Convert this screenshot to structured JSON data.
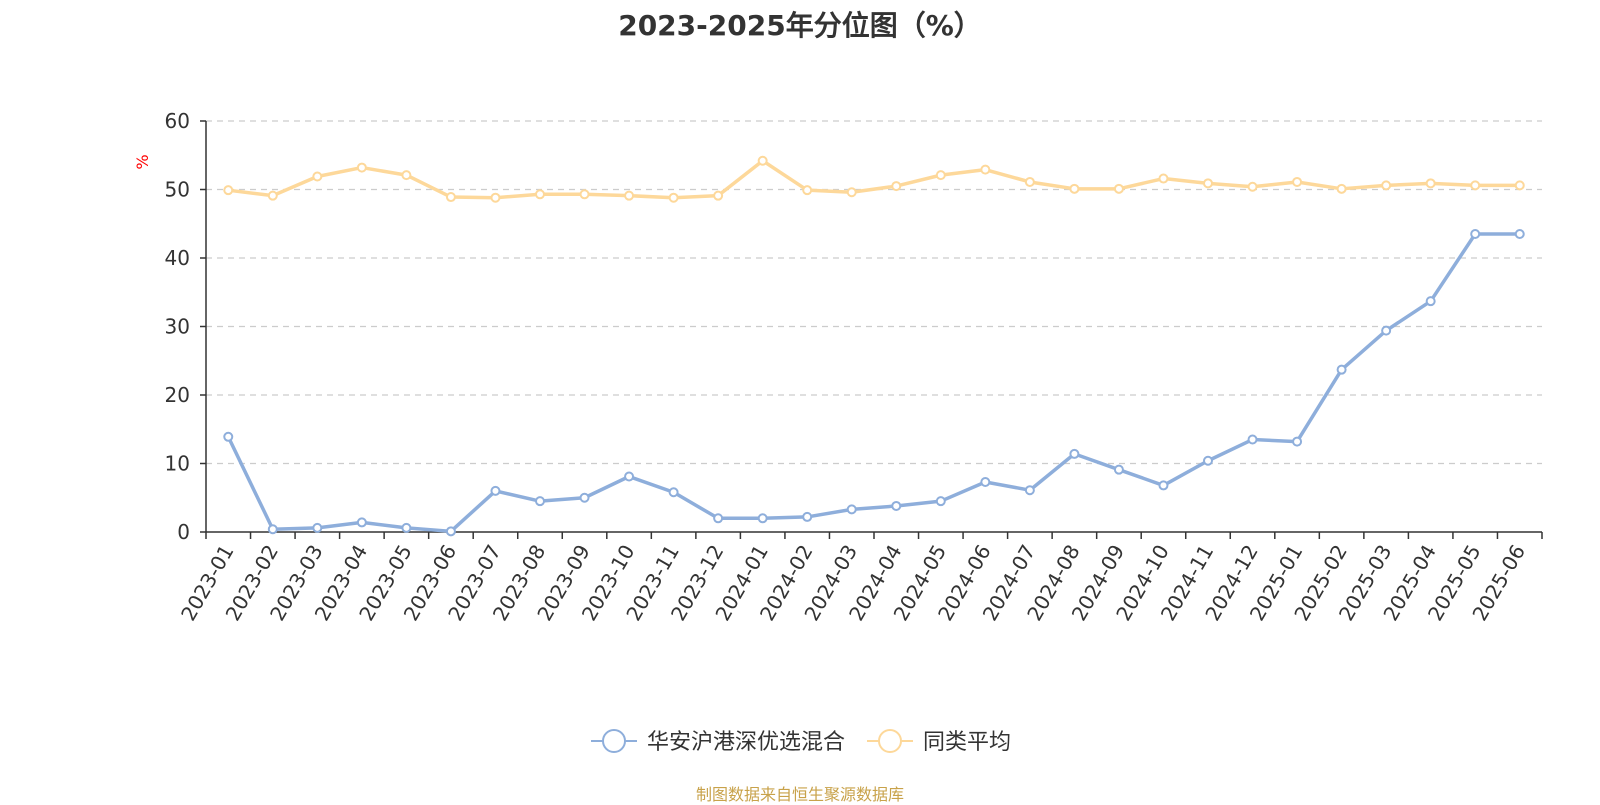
{
  "chart_data": {
    "type": "line",
    "title": "2023-2025年分位图（%）",
    "ylabel": "%",
    "ylim": [
      0,
      60
    ],
    "yticks": [
      0,
      10,
      20,
      30,
      40,
      50,
      60
    ],
    "grid": true,
    "legend_position": "bottom",
    "categories": [
      "2023-01",
      "2023-02",
      "2023-03",
      "2023-04",
      "2023-05",
      "2023-06",
      "2023-07",
      "2023-08",
      "2023-09",
      "2023-10",
      "2023-11",
      "2023-12",
      "2024-01",
      "2024-02",
      "2024-03",
      "2024-04",
      "2024-05",
      "2024-06",
      "2024-07",
      "2024-08",
      "2024-09",
      "2024-10",
      "2024-11",
      "2024-12",
      "2025-01",
      "2025-02",
      "2025-03",
      "2025-04",
      "2025-05",
      "2025-06"
    ],
    "series": [
      {
        "name": "华安沪港深优选混合",
        "color": "#8eaedb",
        "values": [
          13.9,
          0.4,
          0.6,
          1.4,
          0.6,
          0.1,
          6.0,
          4.5,
          5.0,
          8.1,
          5.8,
          2.0,
          2.0,
          2.2,
          3.3,
          3.8,
          4.5,
          7.3,
          6.1,
          11.4,
          9.1,
          6.8,
          10.4,
          13.5,
          13.2,
          23.7,
          29.4,
          33.7,
          43.5,
          43.5
        ]
      },
      {
        "name": "同类平均",
        "color": "#fdd89a",
        "values": [
          49.9,
          49.1,
          51.9,
          53.2,
          52.1,
          48.9,
          48.8,
          49.3,
          49.3,
          49.1,
          48.8,
          49.1,
          54.2,
          49.9,
          49.6,
          50.5,
          52.1,
          52.9,
          51.1,
          50.1,
          50.1,
          51.6,
          50.9,
          50.4,
          51.1,
          50.1,
          50.6,
          50.9,
          50.6,
          50.6
        ]
      }
    ]
  },
  "source_note": "制图数据来自恒生聚源数据库",
  "colors": {
    "axis": "#333333",
    "grid": "#cccccc",
    "ylabel": "#ff0000",
    "source": "#c8a24a"
  }
}
